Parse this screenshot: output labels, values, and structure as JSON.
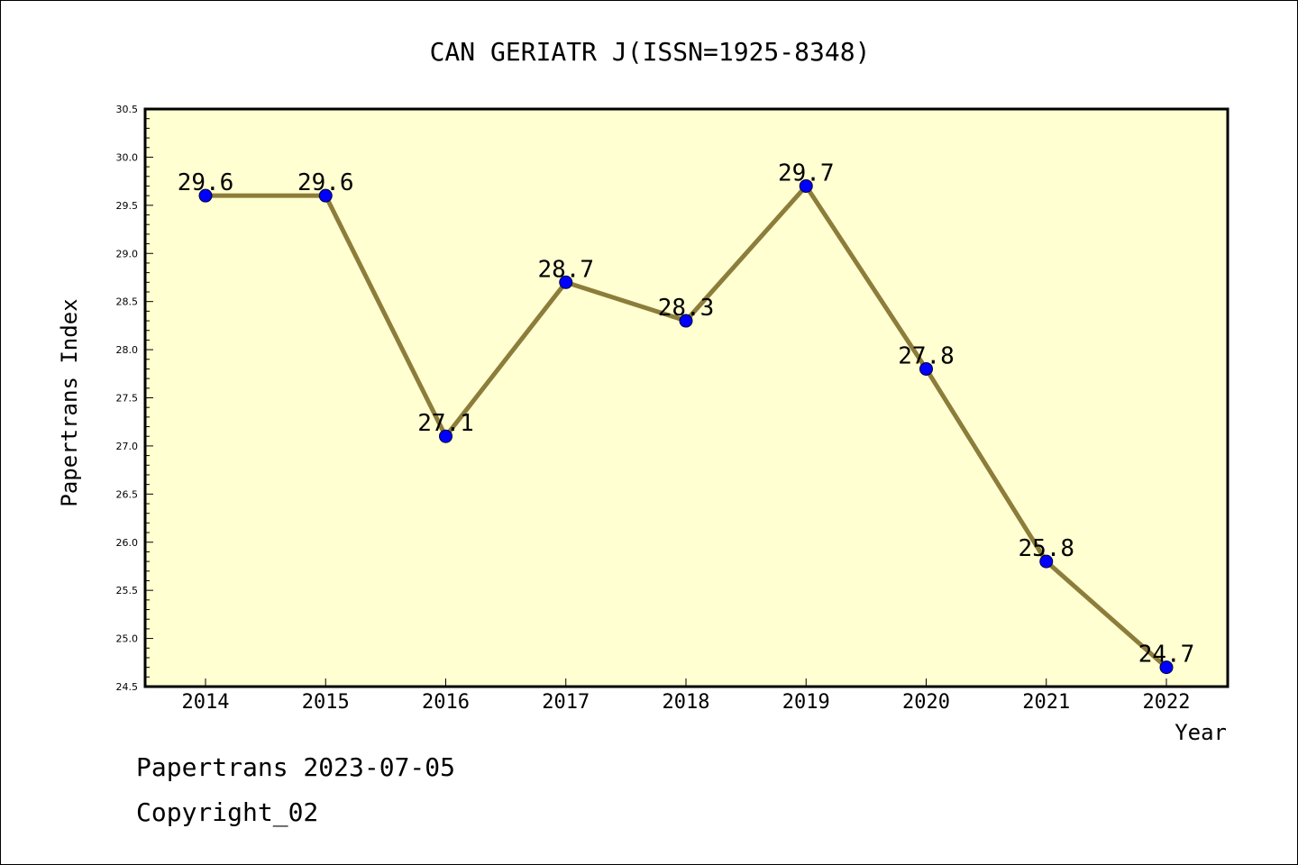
{
  "chart_data": {
    "type": "line",
    "title": "CAN GERIATR J(ISSN=1925-8348)",
    "xlabel": "Year",
    "ylabel": "Papertrans Index",
    "categories": [
      "2014",
      "2015",
      "2016",
      "2017",
      "2018",
      "2019",
      "2020",
      "2021",
      "2022"
    ],
    "series": [
      {
        "values": [
          29.6,
          29.6,
          27.1,
          28.7,
          28.3,
          29.7,
          27.8,
          25.8,
          24.7
        ]
      }
    ],
    "data_labels": [
      "29.6",
      "29.6",
      "27.1",
      "28.7",
      "28.3",
      "29.7",
      "27.8",
      "25.8",
      "24.7"
    ],
    "ylim": [
      24.5,
      30.5
    ],
    "yticks": [
      "24.5",
      "25.0",
      "25.5",
      "26.0",
      "26.5",
      "27.0",
      "27.5",
      "28.0",
      "28.5",
      "29.0",
      "29.5",
      "30.0",
      "30.5"
    ],
    "grid": false,
    "legend": "none",
    "colors": {
      "plot_background": "#ffffd2",
      "line": "#8c7d3a",
      "marker": "#0000ff"
    }
  },
  "footer": {
    "line1": "Papertrans 2023-07-05",
    "line2": "Copyright_02"
  }
}
